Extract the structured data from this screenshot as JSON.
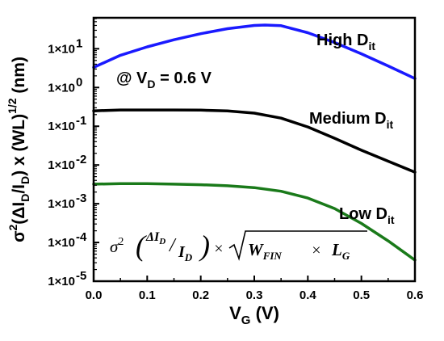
{
  "chart_data": {
    "type": "line",
    "x_label": {
      "main": "V",
      "sub": "G",
      "unit": " (V)"
    },
    "y_label": {
      "sigma": "σ",
      "sup2": "2",
      "open": "(ΔI",
      "sub1": "D",
      "slash": "/I",
      "sub2": "D",
      "close": ") x (WL)",
      "sup_half": "1/2",
      "unit": " (nm)"
    },
    "xlim": [
      0.0,
      0.6
    ],
    "ylim_log10": [
      -5,
      1.8
    ],
    "y_scale": "log",
    "grid": false,
    "x_tick_labels": [
      "0.0",
      "0.1",
      "0.2",
      "0.3",
      "0.4",
      "0.5",
      "0.6"
    ],
    "y_tick_labels": [
      "1×10",
      "1×10",
      "1×10",
      "1×10",
      "1×10",
      "1×10",
      "1×10"
    ],
    "y_tick_exponents": [
      "-5",
      "-4",
      "-3",
      "-2",
      "-1",
      "0",
      "1"
    ],
    "annotation": {
      "text": "@ V",
      "sub": "D",
      "rest": " = 0.6 V"
    },
    "formula": {
      "sigma": "σ",
      "sup2": "2",
      "delta_i": "ΔI",
      "sub_d1": "D",
      "i": "I",
      "sub_d2": "D",
      "times": "×",
      "sqrt": "√",
      "w": "W",
      "sub_fin": "FIN",
      "times2": "×",
      "l": "L",
      "sub_g": "G"
    },
    "series": [
      {
        "label": "High D",
        "label_sub": "it",
        "color": "#1a1aff",
        "x": [
          0.0,
          0.05,
          0.1,
          0.15,
          0.2,
          0.25,
          0.3,
          0.32,
          0.35,
          0.4,
          0.45,
          0.5,
          0.55,
          0.6
        ],
        "y": [
          3.3,
          6.8,
          11.2,
          17.1,
          24.5,
          33.0,
          40.0,
          41.0,
          39.5,
          26.0,
          14.5,
          7.4,
          3.6,
          1.7
        ]
      },
      {
        "label": "Medium D",
        "label_sub": "it",
        "color": "#000000",
        "x": [
          0.0,
          0.05,
          0.1,
          0.15,
          0.2,
          0.25,
          0.3,
          0.35,
          0.4,
          0.45,
          0.5,
          0.55,
          0.6
        ],
        "y": [
          0.25,
          0.263,
          0.263,
          0.263,
          0.26,
          0.25,
          0.218,
          0.162,
          0.096,
          0.049,
          0.024,
          0.0125,
          0.0065
        ]
      },
      {
        "label": "Low D",
        "label_sub": "it",
        "color": "#1a7a1a",
        "x": [
          0.0,
          0.05,
          0.1,
          0.15,
          0.2,
          0.25,
          0.3,
          0.35,
          0.4,
          0.45,
          0.5,
          0.55,
          0.6
        ],
        "y": [
          0.0032,
          0.0033,
          0.0033,
          0.0032,
          0.0031,
          0.0029,
          0.0026,
          0.0021,
          0.0014,
          0.00075,
          0.00031,
          0.00011,
          3.5e-05
        ]
      }
    ]
  }
}
